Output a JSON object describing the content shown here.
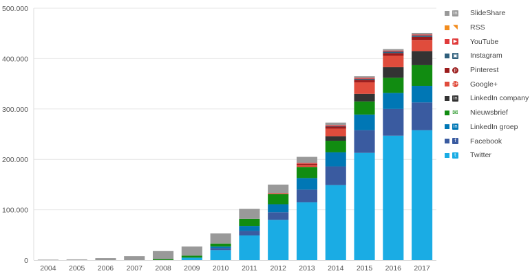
{
  "chart_data": {
    "type": "bar",
    "stacked": true,
    "title": "",
    "xlabel": "",
    "ylabel": "",
    "categories": [
      "2004",
      "2005",
      "2006",
      "2007",
      "2008",
      "2009",
      "2010",
      "2011",
      "2012",
      "2013",
      "2014",
      "2015",
      "2016",
      "2017"
    ],
    "ylim": [
      0,
      500000
    ],
    "yticks": [
      {
        "value": 0,
        "label": "0"
      },
      {
        "value": 100000,
        "label": "100.000"
      },
      {
        "value": 200000,
        "label": "200.000"
      },
      {
        "value": 300000,
        "label": "300.000"
      },
      {
        "value": 400000,
        "label": "400.000"
      },
      {
        "value": 500000,
        "label": "500.000"
      }
    ],
    "grid": true,
    "legend_position": "right",
    "series": [
      {
        "name": "Twitter",
        "color": "#1aace4",
        "icon": "twitter-icon",
        "values": [
          0,
          0,
          0,
          0,
          0,
          5000,
          20000,
          49000,
          80000,
          115000,
          149000,
          213000,
          247000,
          258000
        ]
      },
      {
        "name": "Facebook",
        "color": "#3a5ba0",
        "icon": "facebook-icon",
        "values": [
          0,
          0,
          0,
          0,
          0,
          0,
          4000,
          9000,
          15000,
          25000,
          37000,
          45000,
          53000,
          55000
        ]
      },
      {
        "name": "LinkedIn groep",
        "color": "#0077b5",
        "icon": "linkedin-icon",
        "values": [
          0,
          0,
          0,
          0,
          0,
          0,
          3000,
          10000,
          16000,
          23000,
          28000,
          31000,
          32000,
          33000
        ]
      },
      {
        "name": "Nieuwsbrief",
        "color": "#118c11",
        "icon": "envelope-icon",
        "values": [
          0,
          0,
          0,
          0,
          2000,
          4000,
          6000,
          14000,
          20000,
          22000,
          23000,
          26000,
          30000,
          41000
        ]
      },
      {
        "name": "LinkedIn company",
        "color": "#333333",
        "icon": "linkedin-icon",
        "values": [
          0,
          0,
          0,
          0,
          0,
          0,
          0,
          0,
          0,
          0,
          9000,
          15000,
          21000,
          28000
        ]
      },
      {
        "name": "Google+",
        "color": "#e04c3c",
        "icon": "google-plus-icon",
        "values": [
          0,
          0,
          0,
          0,
          0,
          0,
          0,
          0,
          2000,
          4000,
          15000,
          23000,
          23000,
          22000
        ]
      },
      {
        "name": "Pinterest",
        "color": "#9b1c1c",
        "icon": "pinterest-icon",
        "values": [
          0,
          0,
          0,
          0,
          0,
          0,
          0,
          0,
          0,
          2000,
          4000,
          5000,
          5000,
          6000
        ]
      },
      {
        "name": "Instagram",
        "color": "#2f5f7c",
        "icon": "instagram-icon",
        "values": [
          0,
          0,
          0,
          0,
          0,
          0,
          0,
          0,
          0,
          0,
          1000,
          2000,
          3000,
          3000
        ]
      },
      {
        "name": "YouTube",
        "color": "#e03b3b",
        "icon": "youtube-icon",
        "values": [
          0,
          0,
          0,
          0,
          0,
          0,
          0,
          0,
          0,
          2000,
          2000,
          2000,
          2000,
          2000
        ]
      },
      {
        "name": "RSS",
        "color": "#f28c1e",
        "icon": "rss-icon",
        "values": [
          0,
          0,
          0,
          0,
          0,
          0,
          0,
          0,
          0,
          0,
          0,
          0,
          0,
          0
        ]
      },
      {
        "name": "SlideShare",
        "color": "#999999",
        "icon": "linkedin-icon",
        "values": [
          1000,
          1500,
          4000,
          8000,
          16000,
          18000,
          20000,
          20000,
          17000,
          12000,
          5000,
          3000,
          3000,
          3000
        ]
      }
    ]
  }
}
